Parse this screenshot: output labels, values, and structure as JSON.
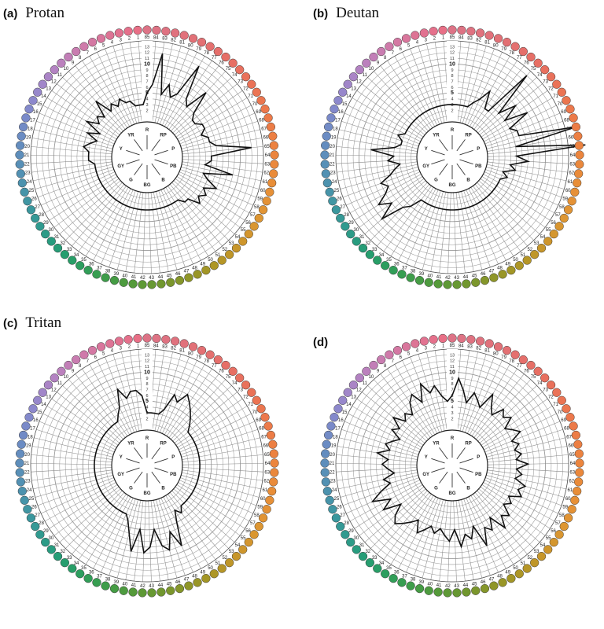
{
  "panels": [
    {
      "id": "a",
      "letter": "(a)",
      "name": "Protan",
      "radii": [
        5,
        6.5,
        12,
        5,
        7,
        5,
        6,
        12,
        6,
        5,
        9,
        5,
        4,
        4,
        5,
        5,
        4,
        5,
        5,
        6,
        12,
        5,
        5,
        4,
        9,
        4,
        5,
        7,
        5,
        6,
        5,
        6,
        4,
        4,
        3,
        3,
        3,
        3,
        3,
        3,
        3,
        3,
        3,
        3,
        3,
        3,
        3,
        3,
        3,
        3,
        3,
        3,
        3,
        3,
        3,
        3,
        3,
        3,
        3,
        3,
        3,
        3,
        3,
        4,
        4,
        4,
        5,
        4,
        3,
        5,
        3,
        6,
        4,
        5,
        4,
        7,
        4,
        5,
        4,
        5,
        4,
        4,
        3,
        3,
        3
      ]
    },
    {
      "id": "b",
      "letter": "(b)",
      "name": "Deutan",
      "radii": [
        3,
        3,
        3,
        3,
        3,
        4,
        5,
        7,
        4,
        4,
        13,
        5,
        8,
        5,
        9,
        5,
        6,
        6,
        16,
        5,
        17,
        5,
        7,
        4,
        5,
        3,
        4,
        3,
        3,
        3,
        3,
        3,
        3,
        3,
        3,
        3,
        3,
        3,
        3,
        3,
        3,
        3,
        3,
        3,
        3,
        3,
        3,
        3,
        3,
        3,
        3,
        3,
        5,
        6,
        10,
        7,
        9,
        7,
        6,
        7,
        5,
        4,
        3,
        5,
        4,
        8,
        4,
        3,
        3,
        4,
        3,
        3,
        3,
        3,
        3,
        3,
        3,
        3,
        3,
        3,
        3,
        3,
        3,
        3,
        3
      ]
    },
    {
      "id": "c",
      "letter": "(c)",
      "name": "Tritan",
      "radii": [
        3,
        3,
        3,
        3,
        4,
        7,
        6,
        8,
        7,
        6,
        5,
        4,
        3,
        3,
        3,
        3,
        3,
        3,
        3,
        3,
        3,
        3,
        3,
        3,
        3,
        3,
        3,
        3,
        3,
        3,
        3,
        3,
        3,
        3,
        4,
        3,
        5,
        9,
        6,
        9,
        8,
        5,
        8,
        9,
        5,
        9,
        6,
        4,
        3,
        3,
        3,
        3,
        3,
        3,
        3,
        3,
        3,
        3,
        3,
        3,
        3,
        3,
        3,
        3,
        3,
        3,
        3,
        3,
        3,
        3,
        3,
        3,
        3,
        3,
        3,
        3,
        3,
        3,
        4,
        5,
        8,
        6,
        7,
        7,
        6
      ]
    },
    {
      "id": "d",
      "letter": "(d)",
      "name": "",
      "radii": [
        6,
        9,
        7,
        5,
        7,
        6,
        5,
        8,
        6,
        5,
        7,
        6,
        7,
        5,
        6,
        7,
        5,
        6,
        5,
        6,
        5,
        7,
        5,
        6,
        5,
        7,
        6,
        7,
        5,
        6,
        5,
        7,
        6,
        8,
        5,
        7,
        6,
        9,
        5,
        7,
        6,
        8,
        5,
        7,
        6,
        5,
        6,
        5,
        6,
        7,
        5,
        6,
        7,
        8,
        7,
        5,
        8,
        6,
        9,
        7,
        5,
        6,
        4,
        5,
        6,
        5,
        7,
        5,
        6,
        5,
        4,
        6,
        5,
        7,
        5,
        6,
        5,
        7,
        8,
        6,
        9,
        7,
        8,
        6,
        5
      ]
    }
  ],
  "cap_numbers": [
    "85",
    "84",
    "83",
    "82",
    "81",
    "80",
    "79",
    "78",
    "77",
    "76",
    "75",
    "74",
    "73",
    "72",
    "71",
    "70",
    "69",
    "68",
    "67",
    "66",
    "65",
    "64",
    "63",
    "62",
    "61",
    "60",
    "59",
    "58",
    "57",
    "56",
    "55",
    "54",
    "53",
    "52",
    "51",
    "50",
    "49",
    "48",
    "47",
    "46",
    "45",
    "44",
    "43",
    "42",
    "41",
    "40",
    "39",
    "38",
    "37",
    "36",
    "35",
    "34",
    "33",
    "32",
    "31",
    "30",
    "29",
    "28",
    "27",
    "26",
    "25",
    "24",
    "23",
    "22",
    "21",
    "20",
    "19",
    "18",
    "17",
    "16",
    "15",
    "14",
    "13",
    "12",
    "11",
    "10",
    "9",
    "8",
    "7",
    "6",
    "5",
    "4",
    "3",
    "2",
    "1"
  ],
  "scale_labels": [
    "13",
    "12",
    "11",
    "10",
    "9",
    "8",
    "7",
    "6",
    "5",
    "4",
    "3",
    "2"
  ],
  "hue_labels": [
    "R",
    "RP",
    "P",
    "PB",
    "B",
    "BG",
    "G",
    "GY",
    "Y",
    "YR"
  ]
}
